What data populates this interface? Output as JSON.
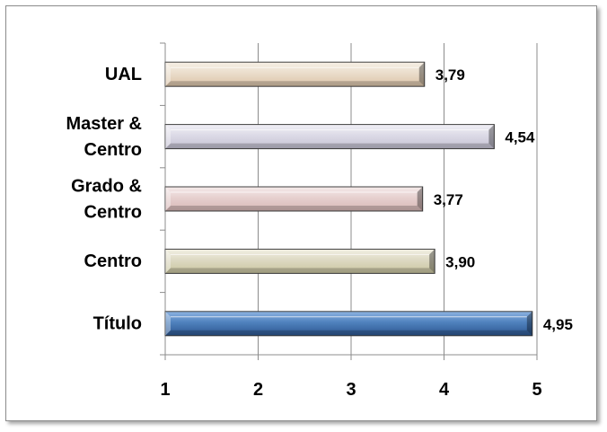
{
  "chart_data": {
    "type": "bar",
    "orientation": "horizontal",
    "categories": [
      [
        "Título"
      ],
      [
        "Centro"
      ],
      [
        "Grado &",
        "Centro"
      ],
      [
        "Master &",
        "Centro"
      ],
      [
        "UAL"
      ]
    ],
    "values": [
      4.95,
      3.9,
      3.77,
      4.54,
      3.79
    ],
    "value_labels": [
      "4,95",
      "3,90",
      "3,77",
      "4,54",
      "3,79"
    ],
    "xlim": [
      1,
      5
    ],
    "xticks": [
      "1",
      "2",
      "3",
      "4",
      "5"
    ],
    "grid": "vertical",
    "legend": "none",
    "colors": {
      "Título": [
        "#2c5690",
        "#4f81bd",
        "#8db3e2"
      ],
      "Centro": [
        "#c9c59e",
        "#ddd9c3",
        "#f2f0e3"
      ],
      "Grado & Centro": [
        "#d8b7b6",
        "#e6d0cf",
        "#f5eaea"
      ],
      "Master & Centro": [
        "#c5c2d4",
        "#dcdae6",
        "#f1f0f6"
      ],
      "UAL": [
        "#dcc4a8",
        "#eaddcb",
        "#f7f0e6"
      ],
      "edge": "#3f3f3f"
    }
  }
}
